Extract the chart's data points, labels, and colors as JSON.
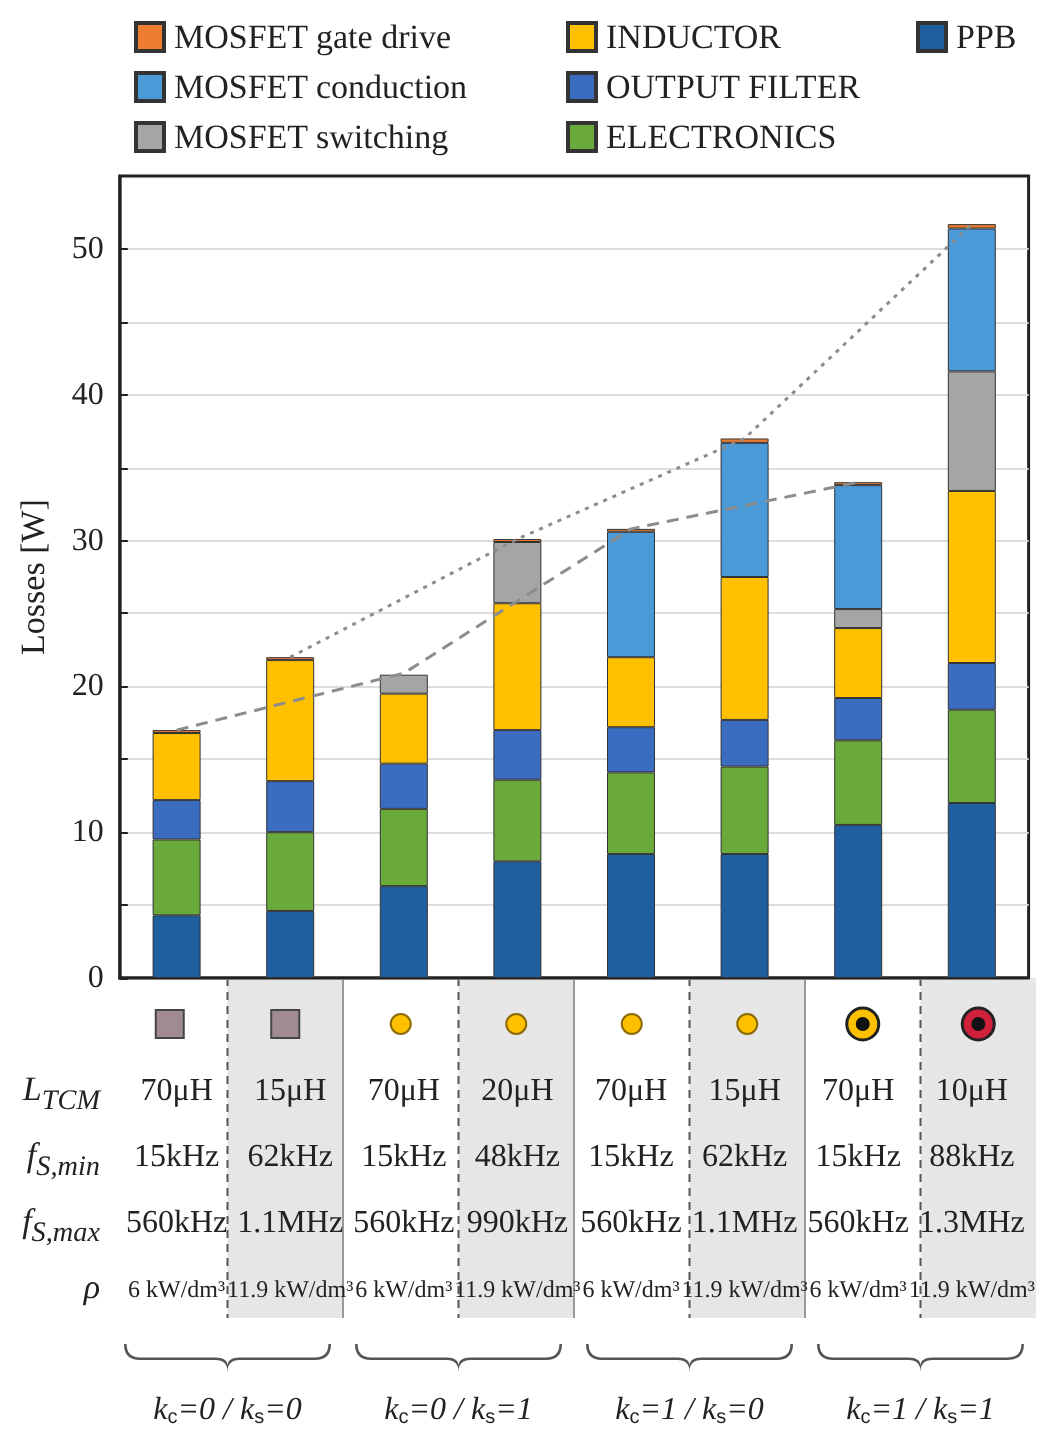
{
  "chart_data": {
    "type": "bar",
    "stacked": true,
    "ylabel": "Losses [W]",
    "categories": [
      "70μH\n15kHz\n560kHz\n6 kW/dm³",
      "15μH\n62kHz\n1.1MHz\n11.9 kW/dm³",
      "70μH\n15kHz\n560kHz\n6 kW/dm³",
      "20μH\n48kHz\n990kHz\n11.9 kW/dm³",
      "70μH\n15kHz\n560kHz\n6 kW/dm³",
      "15μH\n62kHz\n1.1MHz\n11.9 kW/dm³",
      "70μH\n15kHz\n560kHz\n6 kW/dm³",
      "10μH\n88kHz\n1.3MHz\n11.9 kW/dm³"
    ],
    "series": [
      {
        "name": "PPB",
        "color": "#1f5f9f",
        "values": [
          4.3,
          4.6,
          6.3,
          8.0,
          8.5,
          8.5,
          10.5,
          12.0
        ]
      },
      {
        "name": "ELECTRONICS",
        "color": "#6aaa3a",
        "values": [
          5.2,
          5.4,
          5.3,
          5.6,
          5.6,
          6.0,
          5.8,
          6.4
        ]
      },
      {
        "name": "OUTPUT FILTER",
        "color": "#3a6cc0",
        "values": [
          2.7,
          3.5,
          3.1,
          3.4,
          3.1,
          3.2,
          2.9,
          3.2
        ]
      },
      {
        "name": "INDUCTOR",
        "color": "#ffc000",
        "values": [
          4.6,
          8.3,
          4.8,
          8.7,
          4.8,
          9.8,
          4.8,
          11.8
        ]
      },
      {
        "name": "MOSFET switching",
        "color": "#a5a5a5",
        "values": [
          null,
          null,
          1.3,
          4.2,
          null,
          null,
          1.3,
          8.2
        ]
      },
      {
        "name": "MOSFET conduction",
        "color": "#4a9ad8",
        "values": [
          null,
          null,
          null,
          null,
          8.6,
          9.2,
          8.5,
          9.8
        ]
      },
      {
        "name": "MOSFET gate drive",
        "color": "#ed7d31",
        "values": [
          0.2,
          0.2,
          null,
          0.2,
          0.2,
          0.3,
          0.2,
          0.3
        ]
      },
      {
        "type": "line",
        "line_style": "dashed",
        "color": "#8c8c8c",
        "values": [
          17.0,
          null,
          20.9,
          null,
          30.8,
          null,
          34.0,
          null
        ]
      },
      {
        "type": "line",
        "line_style": "dotted",
        "color": "#8c8c8c",
        "values": [
          null,
          22.0,
          null,
          30.1,
          null,
          37.0,
          null,
          51.7
        ]
      }
    ],
    "ylim": [
      0,
      55
    ],
    "yticks": [
      0,
      {
        "value": 5,
        "label": null
      },
      10,
      {
        "value": 15,
        "label": null
      },
      20,
      {
        "value": 25,
        "label": null
      },
      30,
      {
        "value": 35,
        "label": null
      },
      40,
      {
        "value": 45,
        "label": null
      },
      50
    ],
    "grid": "y",
    "legend": "top",
    "marker": "none",
    "annotations": [
      "L$_{TCM}$",
      "f$_{S,min}$",
      "f$_{S,max}$",
      "ρ",
      "k$_{c}$=0 / k$_{s}$=0",
      "k$_{c}$=0 / k$_{s}$=1",
      "k$_{c}$=1 / k$_{s}$=0",
      "k$_{c}$=1 / k$_{s}$=1"
    ]
  }
}
